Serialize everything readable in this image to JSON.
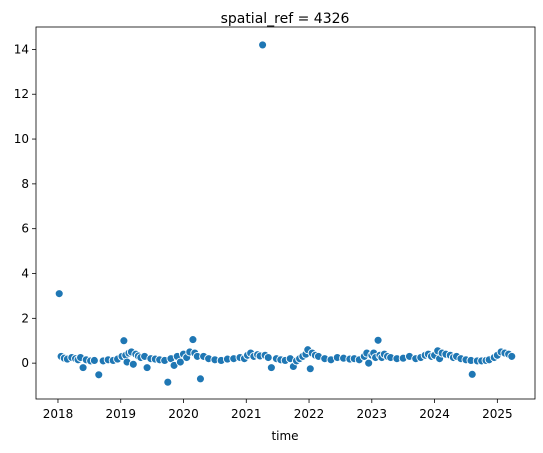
{
  "chart_data": {
    "type": "scatter",
    "title": "spatial_ref = 4326",
    "xlabel": "time",
    "ylabel": "",
    "xlim": [
      2017.65,
      2025.6
    ],
    "ylim": [
      -1.6,
      15.0
    ],
    "x_ticks": [
      {
        "value": 2018,
        "label": "2018"
      },
      {
        "value": 2019,
        "label": "2019"
      },
      {
        "value": 2020,
        "label": "2020"
      },
      {
        "value": 2021,
        "label": "2021"
      },
      {
        "value": 2022,
        "label": "2022"
      },
      {
        "value": 2023,
        "label": "2023"
      },
      {
        "value": 2024,
        "label": "2024"
      },
      {
        "value": 2025,
        "label": "2025"
      }
    ],
    "y_ticks": [
      {
        "value": 0,
        "label": "0"
      },
      {
        "value": 2,
        "label": "2"
      },
      {
        "value": 4,
        "label": "4"
      },
      {
        "value": 6,
        "label": "6"
      },
      {
        "value": 8,
        "label": "8"
      },
      {
        "value": 10,
        "label": "10"
      },
      {
        "value": 12,
        "label": "12"
      },
      {
        "value": 14,
        "label": "14"
      }
    ],
    "grid": false,
    "marker_color": "#1f77b4",
    "marker_edge_color": "#ffffff",
    "points": [
      [
        2018.02,
        3.1
      ],
      [
        2018.05,
        0.3
      ],
      [
        2018.1,
        0.22
      ],
      [
        2018.15,
        0.18
      ],
      [
        2018.22,
        0.25
      ],
      [
        2018.28,
        0.2
      ],
      [
        2018.32,
        0.15
      ],
      [
        2018.36,
        0.25
      ],
      [
        2018.4,
        -0.2
      ],
      [
        2018.45,
        0.15
      ],
      [
        2018.52,
        0.1
      ],
      [
        2018.58,
        0.12
      ],
      [
        2018.65,
        -0.52
      ],
      [
        2018.72,
        0.1
      ],
      [
        2018.8,
        0.15
      ],
      [
        2018.88,
        0.12
      ],
      [
        2018.95,
        0.18
      ],
      [
        2019.02,
        0.3
      ],
      [
        2019.05,
        1.0
      ],
      [
        2019.08,
        0.35
      ],
      [
        2019.1,
        0.05
      ],
      [
        2019.13,
        0.45
      ],
      [
        2019.17,
        0.5
      ],
      [
        2019.2,
        -0.05
      ],
      [
        2019.24,
        0.4
      ],
      [
        2019.28,
        0.32
      ],
      [
        2019.32,
        0.25
      ],
      [
        2019.38,
        0.3
      ],
      [
        2019.42,
        -0.2
      ],
      [
        2019.48,
        0.2
      ],
      [
        2019.55,
        0.18
      ],
      [
        2019.62,
        0.15
      ],
      [
        2019.7,
        0.12
      ],
      [
        2019.75,
        -0.85
      ],
      [
        2019.8,
        0.2
      ],
      [
        2019.85,
        -0.1
      ],
      [
        2019.9,
        0.3
      ],
      [
        2019.95,
        0.05
      ],
      [
        2020.0,
        0.4
      ],
      [
        2020.05,
        0.25
      ],
      [
        2020.1,
        0.5
      ],
      [
        2020.15,
        1.05
      ],
      [
        2020.18,
        0.45
      ],
      [
        2020.22,
        0.3
      ],
      [
        2020.27,
        -0.7
      ],
      [
        2020.32,
        0.3
      ],
      [
        2020.4,
        0.2
      ],
      [
        2020.5,
        0.15
      ],
      [
        2020.6,
        0.12
      ],
      [
        2020.7,
        0.18
      ],
      [
        2020.8,
        0.2
      ],
      [
        2020.9,
        0.25
      ],
      [
        2020.97,
        0.2
      ],
      [
        2021.02,
        0.35
      ],
      [
        2021.07,
        0.45
      ],
      [
        2021.12,
        0.3
      ],
      [
        2021.18,
        0.38
      ],
      [
        2021.22,
        0.32
      ],
      [
        2021.26,
        14.2
      ],
      [
        2021.3,
        0.35
      ],
      [
        2021.35,
        0.25
      ],
      [
        2021.4,
        -0.2
      ],
      [
        2021.48,
        0.2
      ],
      [
        2021.55,
        0.15
      ],
      [
        2021.62,
        0.12
      ],
      [
        2021.7,
        0.2
      ],
      [
        2021.75,
        -0.15
      ],
      [
        2021.8,
        0.1
      ],
      [
        2021.85,
        0.2
      ],
      [
        2021.9,
        0.3
      ],
      [
        2021.95,
        0.4
      ],
      [
        2021.98,
        0.6
      ],
      [
        2022.02,
        -0.25
      ],
      [
        2022.05,
        0.45
      ],
      [
        2022.1,
        0.35
      ],
      [
        2022.15,
        0.3
      ],
      [
        2022.25,
        0.2
      ],
      [
        2022.35,
        0.15
      ],
      [
        2022.45,
        0.25
      ],
      [
        2022.55,
        0.22
      ],
      [
        2022.65,
        0.18
      ],
      [
        2022.72,
        0.2
      ],
      [
        2022.8,
        0.15
      ],
      [
        2022.88,
        0.3
      ],
      [
        2022.92,
        0.45
      ],
      [
        2022.95,
        0.0
      ],
      [
        2023.0,
        0.35
      ],
      [
        2023.03,
        0.45
      ],
      [
        2023.06,
        0.25
      ],
      [
        2023.1,
        1.02
      ],
      [
        2023.13,
        0.35
      ],
      [
        2023.16,
        0.25
      ],
      [
        2023.2,
        0.4
      ],
      [
        2023.25,
        0.3
      ],
      [
        2023.3,
        0.25
      ],
      [
        2023.4,
        0.2
      ],
      [
        2023.5,
        0.22
      ],
      [
        2023.6,
        0.3
      ],
      [
        2023.7,
        0.2
      ],
      [
        2023.78,
        0.25
      ],
      [
        2023.85,
        0.35
      ],
      [
        2023.9,
        0.4
      ],
      [
        2023.95,
        0.3
      ],
      [
        2024.0,
        0.35
      ],
      [
        2024.05,
        0.55
      ],
      [
        2024.08,
        0.2
      ],
      [
        2024.12,
        0.45
      ],
      [
        2024.18,
        0.4
      ],
      [
        2024.25,
        0.35
      ],
      [
        2024.3,
        0.25
      ],
      [
        2024.35,
        0.3
      ],
      [
        2024.42,
        0.2
      ],
      [
        2024.5,
        0.15
      ],
      [
        2024.58,
        0.12
      ],
      [
        2024.6,
        -0.5
      ],
      [
        2024.68,
        0.1
      ],
      [
        2024.75,
        0.1
      ],
      [
        2024.82,
        0.12
      ],
      [
        2024.87,
        0.15
      ],
      [
        2024.95,
        0.25
      ],
      [
        2025.0,
        0.35
      ],
      [
        2025.06,
        0.5
      ],
      [
        2025.12,
        0.45
      ],
      [
        2025.18,
        0.4
      ],
      [
        2025.23,
        0.3
      ]
    ]
  }
}
